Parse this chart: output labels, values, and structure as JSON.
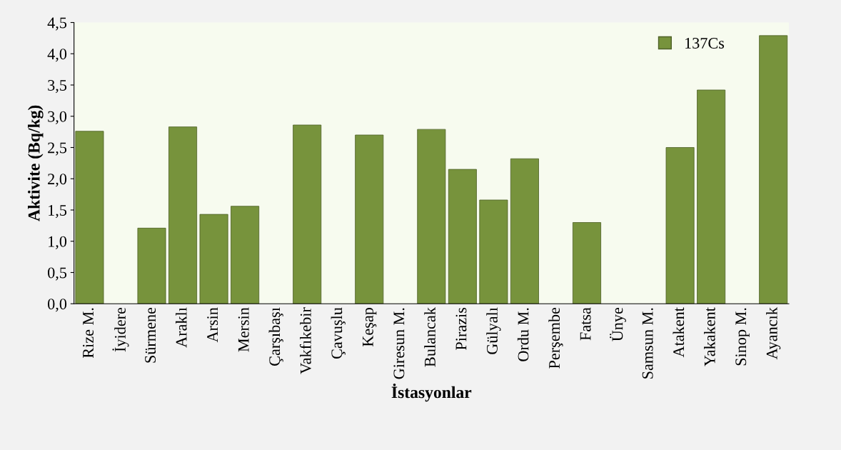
{
  "chart_data": {
    "type": "bar",
    "xlabel": "İstasyonlar",
    "ylabel": "Aktivite (Bq/kg)",
    "categories": [
      "Rize M.",
      "İyidere",
      "Sürmene",
      "Araklı",
      "Arsin",
      "Mersin",
      "Çarşıbaşı",
      "Vakfıkebir",
      "Çavuşlu",
      "Keşap",
      "Giresun M.",
      "Bulancak",
      "Pirazis",
      "Gülyalı",
      "Ordu M.",
      "Perşembe",
      "Fatsa",
      "Ünye",
      "Samsun M.",
      "Atakent",
      "Yakakent",
      "Sinop M.",
      "Ayancık"
    ],
    "series": [
      {
        "name": "137Cs",
        "color": "#77933c",
        "values": [
          2.76,
          null,
          1.21,
          2.83,
          1.43,
          1.56,
          null,
          2.86,
          null,
          2.7,
          null,
          2.79,
          2.15,
          1.66,
          2.32,
          null,
          1.3,
          null,
          null,
          2.5,
          3.42,
          null,
          4.29
        ]
      }
    ],
    "ylim": [
      0,
      4.5
    ],
    "yticks": [
      {
        "value": 0,
        "label": "0,0"
      },
      {
        "value": 0.5,
        "label": "0,5"
      },
      {
        "value": 1,
        "label": "1,0"
      },
      {
        "value": 1.5,
        "label": "1,5"
      },
      {
        "value": 2,
        "label": "2,0"
      },
      {
        "value": 2.5,
        "label": "2,5"
      },
      {
        "value": 3,
        "label": "3,0"
      },
      {
        "value": 3.5,
        "label": "3,5"
      },
      {
        "value": 4,
        "label": "4,0"
      },
      {
        "value": 4.5,
        "label": "4,5"
      }
    ],
    "legend": "top right",
    "grid": false
  }
}
